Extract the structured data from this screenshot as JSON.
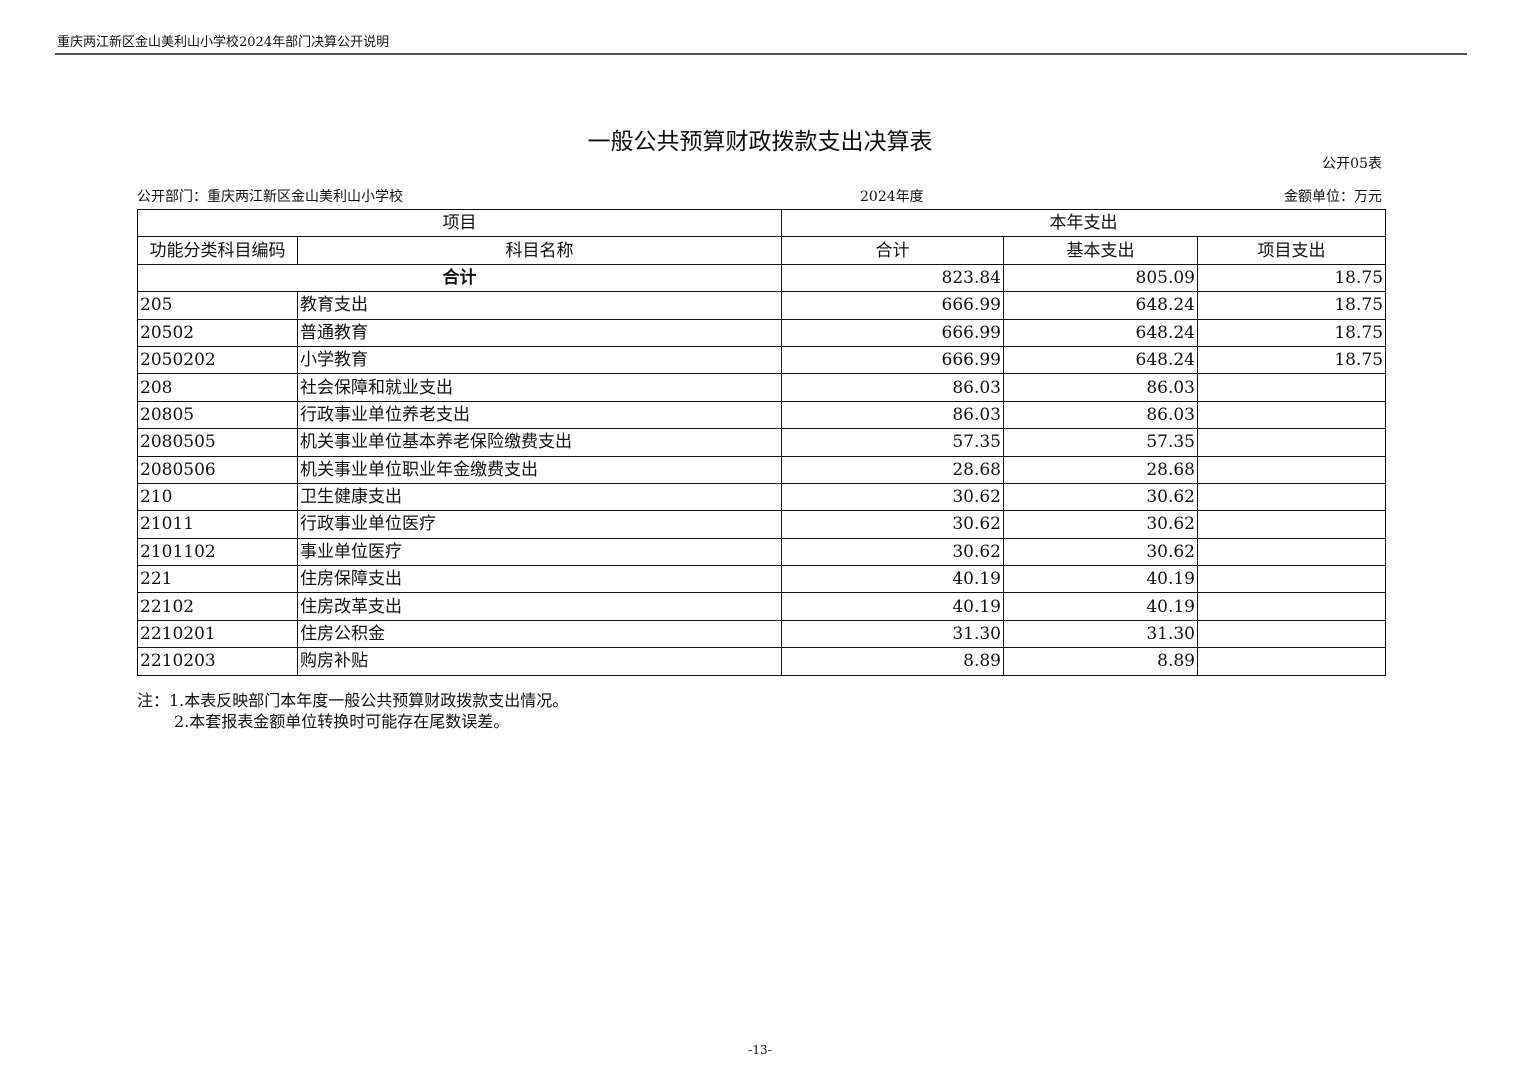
{
  "header": {
    "running_title": "重庆两江新区金山美利山小学校2024年部门决算公开说明"
  },
  "title": "一般公共预算财政拨款支出决算表",
  "form_no": "公开05表",
  "meta": {
    "dept": "公开部门：重庆两江新区金山美利山小学校",
    "year": "2024年度",
    "unit": "金额单位：万元"
  },
  "table": {
    "group_headers": [
      "项目",
      "本年支出"
    ],
    "columns": [
      "功能分类科目编码",
      "科目名称",
      "合计",
      "基本支出",
      "项目支出"
    ],
    "total": {
      "label": "合计",
      "total": "823.84",
      "basic": "805.09",
      "project": "18.75"
    },
    "rows": [
      {
        "code": "205",
        "name": "教育支出",
        "total": "666.99",
        "basic": "648.24",
        "project": "18.75"
      },
      {
        "code": "20502",
        "name": "普通教育",
        "total": "666.99",
        "basic": "648.24",
        "project": "18.75"
      },
      {
        "code": "2050202",
        "name": "小学教育",
        "total": "666.99",
        "basic": "648.24",
        "project": "18.75"
      },
      {
        "code": "208",
        "name": "社会保障和就业支出",
        "total": "86.03",
        "basic": "86.03",
        "project": ""
      },
      {
        "code": "20805",
        "name": "行政事业单位养老支出",
        "total": "86.03",
        "basic": "86.03",
        "project": ""
      },
      {
        "code": "2080505",
        "name": "机关事业单位基本养老保险缴费支出",
        "total": "57.35",
        "basic": "57.35",
        "project": ""
      },
      {
        "code": "2080506",
        "name": "机关事业单位职业年金缴费支出",
        "total": "28.68",
        "basic": "28.68",
        "project": ""
      },
      {
        "code": "210",
        "name": "卫生健康支出",
        "total": "30.62",
        "basic": "30.62",
        "project": ""
      },
      {
        "code": "21011",
        "name": "行政事业单位医疗",
        "total": "30.62",
        "basic": "30.62",
        "project": ""
      },
      {
        "code": "2101102",
        "name": "事业单位医疗",
        "total": "30.62",
        "basic": "30.62",
        "project": ""
      },
      {
        "code": "221",
        "name": "住房保障支出",
        "total": "40.19",
        "basic": "40.19",
        "project": ""
      },
      {
        "code": "22102",
        "name": "住房改革支出",
        "total": "40.19",
        "basic": "40.19",
        "project": ""
      },
      {
        "code": "2210201",
        "name": "住房公积金",
        "total": "31.30",
        "basic": "31.30",
        "project": ""
      },
      {
        "code": "2210203",
        "name": "购房补贴",
        "total": "8.89",
        "basic": "8.89",
        "project": ""
      }
    ]
  },
  "notes": [
    "注：1.本表反映部门本年度一般公共预算财政拨款支出情况。",
    "2.本套报表金额单位转换时可能存在尾数误差。"
  ],
  "page_number": "-13-"
}
